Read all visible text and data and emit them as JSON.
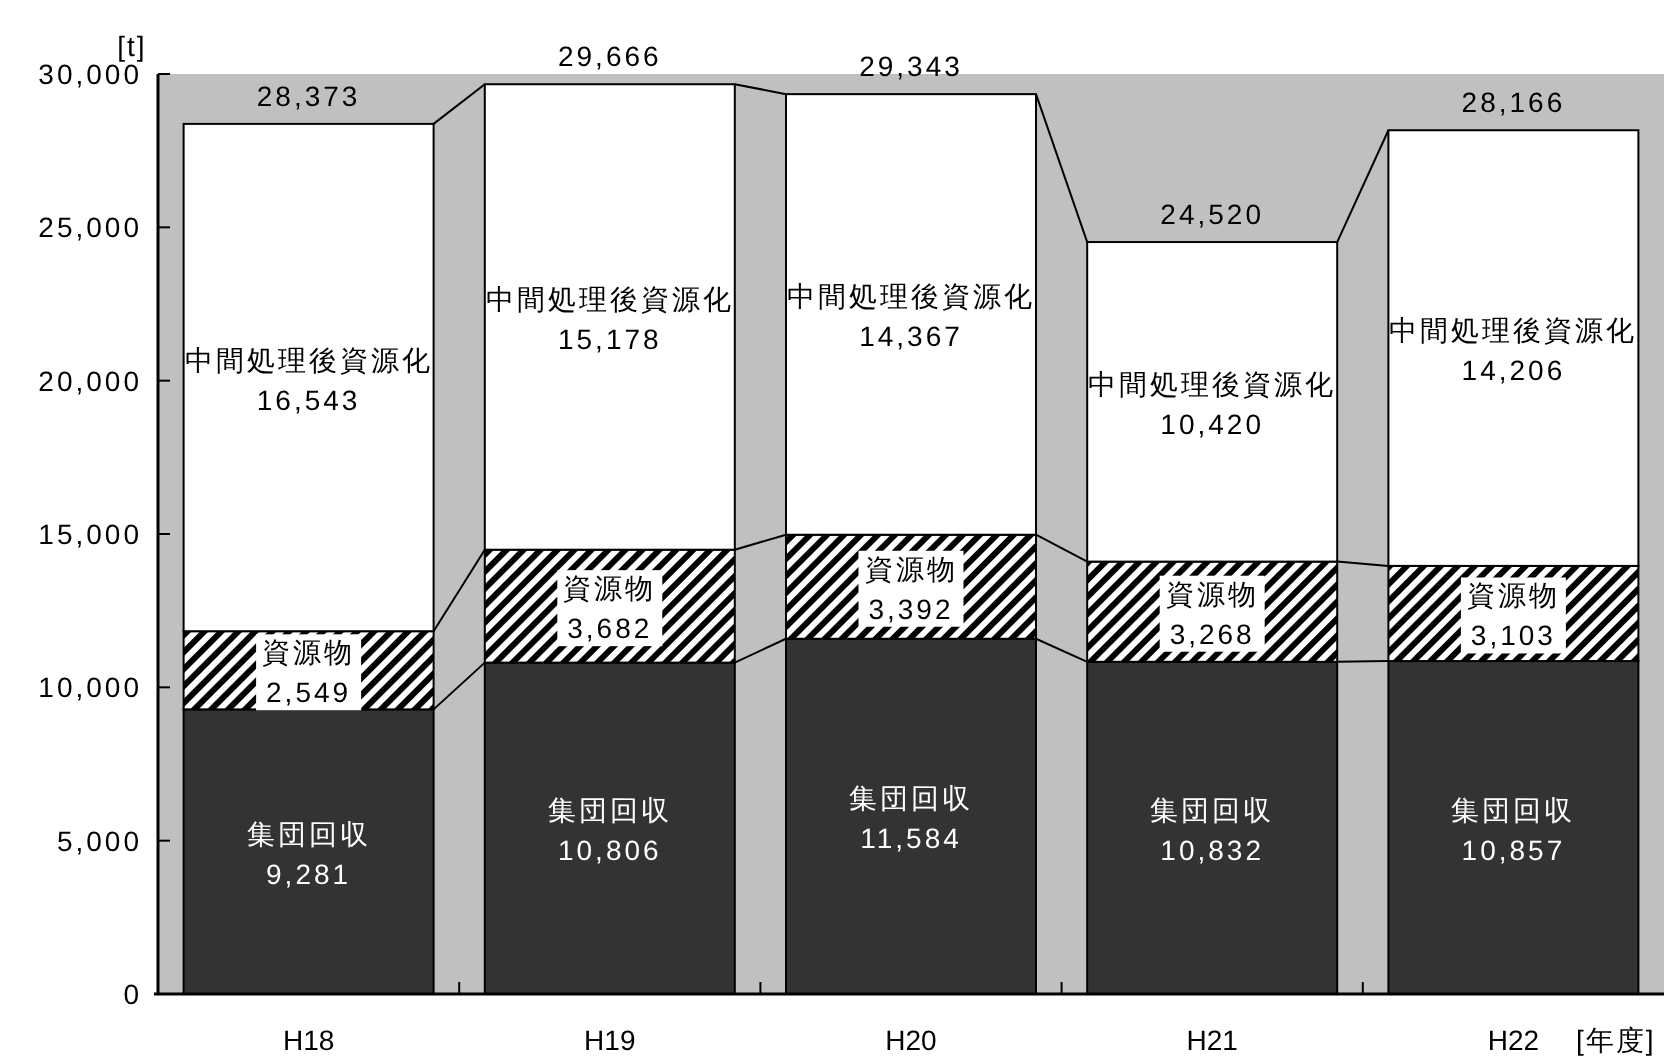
{
  "chart_data": {
    "type": "bar",
    "stacked": true,
    "xlabel": "[年度]",
    "ylabel": "[t]",
    "categories": [
      "H18",
      "H19",
      "H20",
      "H21",
      "H22"
    ],
    "series": [
      {
        "name": "集団回収",
        "color": "#333333",
        "values": [
          9281,
          10806,
          11584,
          10832,
          10857
        ],
        "value_labels": [
          "9,281",
          "10,806",
          "11,584",
          "10,832",
          "10,857"
        ]
      },
      {
        "name": "資源物",
        "color": "#000000",
        "values": [
          2549,
          3682,
          3392,
          3268,
          3103
        ],
        "value_labels": [
          "2,549",
          "3,682",
          "3,392",
          "3,268",
          "3,103"
        ]
      },
      {
        "name": "中間処理後資源化",
        "color": "#ffffff",
        "values": [
          16543,
          15178,
          14367,
          10420,
          14206
        ],
        "value_labels": [
          "16,543",
          "15,178",
          "14,367",
          "10,420",
          "14,206"
        ]
      }
    ],
    "totals": [
      "28,373",
      "29,666",
      "29,343",
      "24,520",
      "28,166"
    ],
    "ylim": [
      0,
      30000
    ],
    "yticks": [
      0,
      {
        "value": 5000,
        "label": "5,000"
      },
      {
        "value": 10000,
        "label": "10,000"
      },
      {
        "value": 15000,
        "label": "15,000"
      },
      {
        "value": 20000,
        "label": "20,000"
      },
      {
        "value": 25000,
        "label": "25,000"
      },
      {
        "value": 30000,
        "label": "30,000"
      }
    ]
  }
}
